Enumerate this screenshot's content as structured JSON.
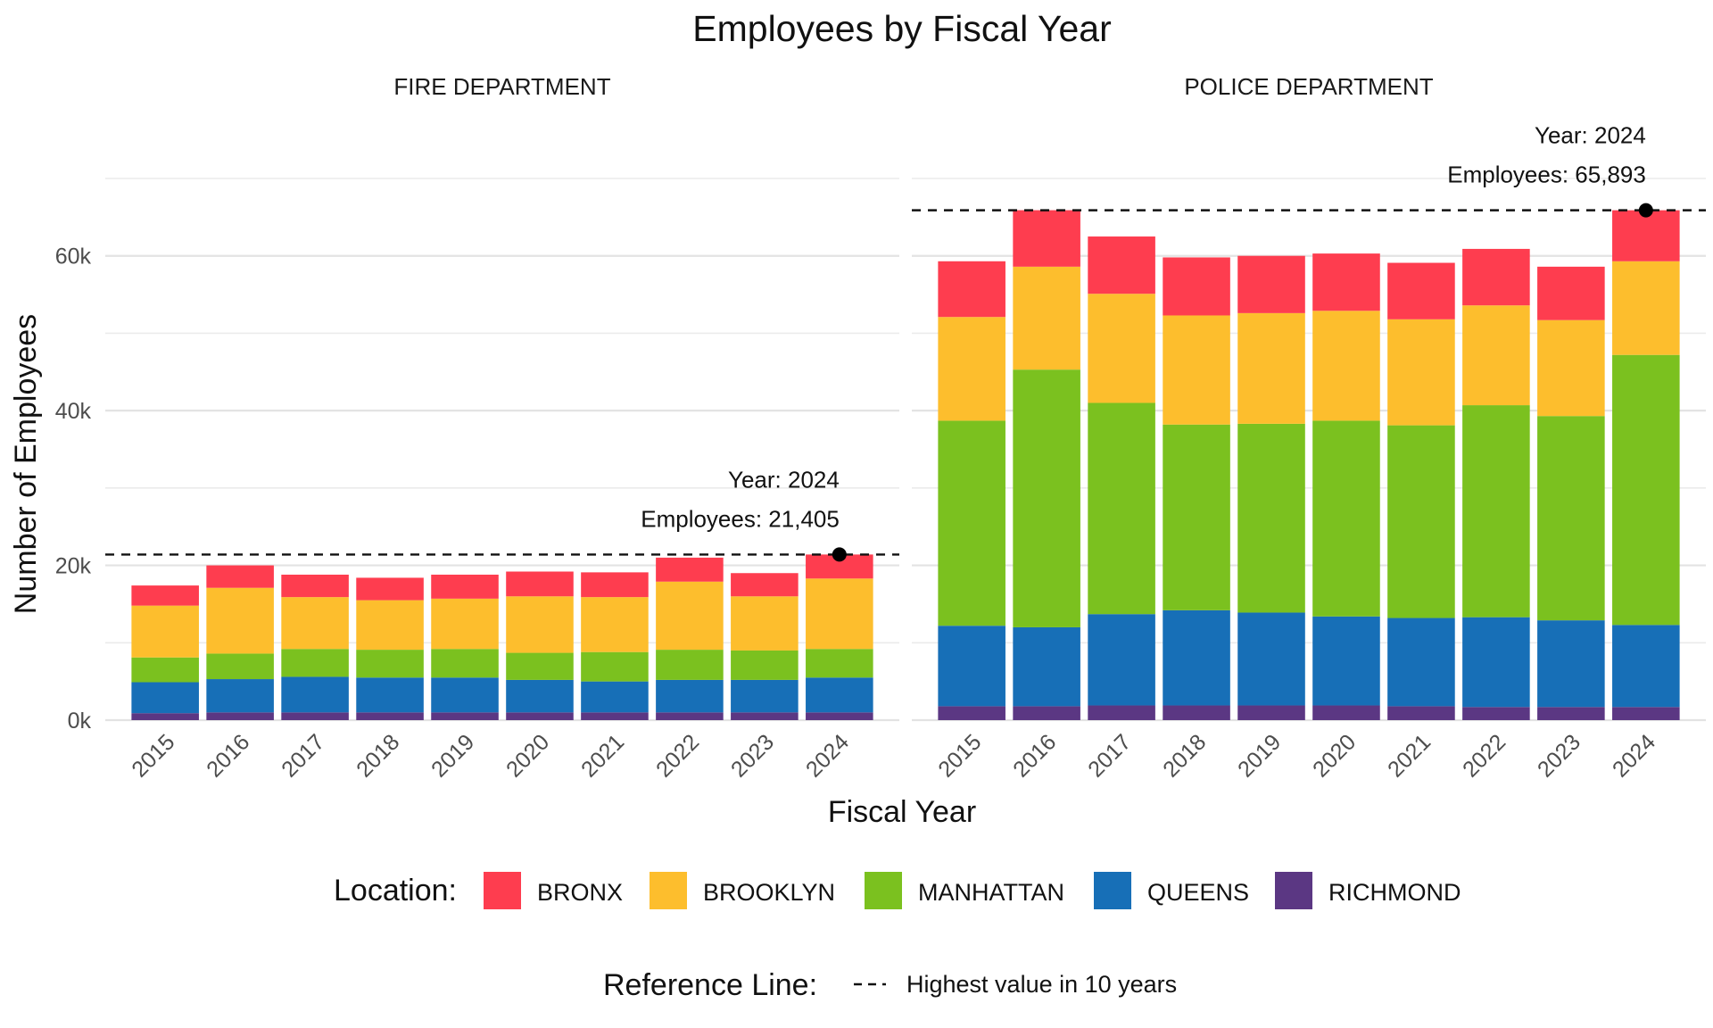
{
  "chart_data": {
    "type": "bar",
    "stacked": true,
    "title": "Employees by Fiscal Year",
    "xlabel": "Fiscal Year",
    "ylabel": "Number of Employees",
    "ylim": [
      0,
      70000
    ],
    "y_ticks": [
      "0k",
      "20k",
      "40k",
      "60k"
    ],
    "y_tick_values": [
      0,
      20000,
      40000,
      60000
    ],
    "grid": true,
    "categories": [
      "2015",
      "2016",
      "2017",
      "2018",
      "2019",
      "2020",
      "2021",
      "2022",
      "2023",
      "2024"
    ],
    "colors": {
      "BRONX": "#fe3d4f",
      "BROOKLYN": "#fdbe2d",
      "MANHATTAN": "#7bc11f",
      "QUEENS": "#176fb7",
      "RICHMOND": "#5b3783"
    },
    "facets": [
      {
        "name": "FIRE DEPARTMENT",
        "series": [
          {
            "name": "RICHMOND",
            "values": [
              900,
              1000,
              1000,
              1000,
              1000,
              1000,
              1000,
              1000,
              1000,
              1000
            ]
          },
          {
            "name": "QUEENS",
            "values": [
              4000,
              4300,
              4600,
              4500,
              4500,
              4200,
              4000,
              4200,
              4200,
              4500
            ]
          },
          {
            "name": "MANHATTAN",
            "values": [
              3200,
              3300,
              3600,
              3600,
              3700,
              3500,
              3800,
              3900,
              3800,
              3700
            ]
          },
          {
            "name": "BROOKLYN",
            "values": [
              6700,
              8500,
              6700,
              6400,
              6500,
              7300,
              7100,
              8800,
              7000,
              9100
            ]
          },
          {
            "name": "BRONX",
            "values": [
              2600,
              2900,
              2900,
              2900,
              3100,
              3200,
              3200,
              3100,
              3000,
              3105
            ]
          }
        ],
        "reference_value": 21405,
        "annotation_year": "Year: 2024",
        "annotation_employees": "Employees: 21,405"
      },
      {
        "name": "POLICE DEPARTMENT",
        "series": [
          {
            "name": "RICHMOND",
            "values": [
              1800,
              1800,
              1900,
              1900,
              1900,
              1900,
              1800,
              1700,
              1700,
              1700
            ]
          },
          {
            "name": "QUEENS",
            "values": [
              10400,
              10200,
              11800,
              12300,
              12000,
              11500,
              11400,
              11600,
              11200,
              10600
            ]
          },
          {
            "name": "MANHATTAN",
            "values": [
              26500,
              33300,
              27300,
              24000,
              24400,
              25300,
              24900,
              27400,
              26400,
              34900
            ]
          },
          {
            "name": "BROOKLYN",
            "values": [
              13400,
              13300,
              14100,
              14100,
              14300,
              14200,
              13700,
              12900,
              12400,
              12100
            ]
          },
          {
            "name": "BRONX",
            "values": [
              7200,
              7300,
              7400,
              7500,
              7400,
              7400,
              7300,
              7300,
              6900,
              6593
            ]
          }
        ],
        "reference_value": 65893,
        "annotation_year": "Year: 2024",
        "annotation_employees": "Employees: 65,893"
      }
    ],
    "legend": {
      "title": "Location:",
      "placement": "bottom",
      "entries": [
        "BRONX",
        "BROOKLYN",
        "MANHATTAN",
        "QUEENS",
        "RICHMOND"
      ]
    },
    "reference_legend": {
      "title": "Reference Line:",
      "label": "Highest value in 10 years"
    }
  }
}
